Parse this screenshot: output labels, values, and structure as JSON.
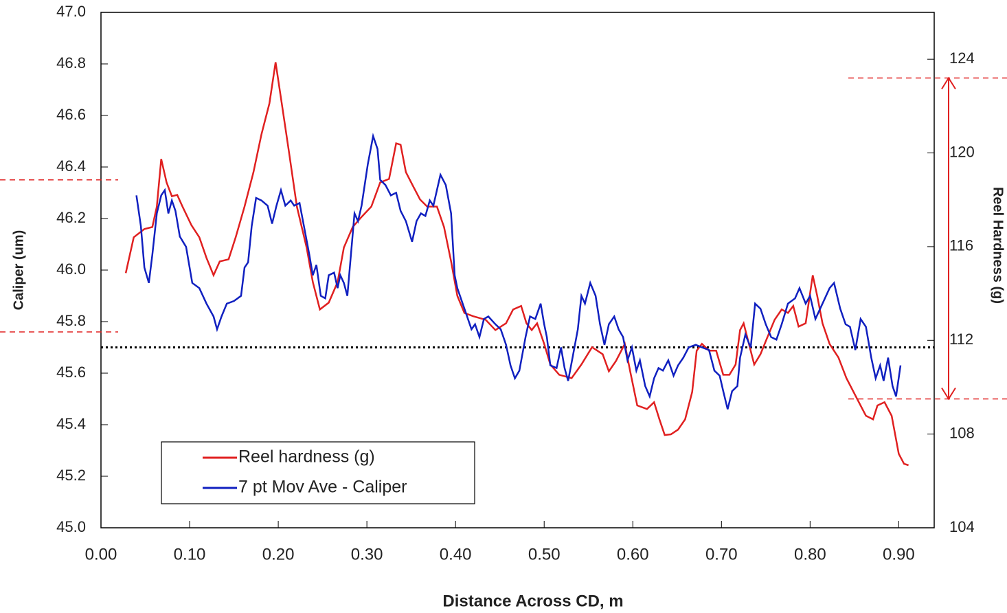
{
  "chart_data": {
    "type": "line",
    "xlabel": "Distance Across CD, m",
    "ylabel": "Caliper (um)",
    "y2label": "Reel Hardness (g)",
    "xlim": [
      0,
      0.94
    ],
    "ylim": [
      45.0,
      47.0
    ],
    "y2lim": [
      104,
      126
    ],
    "xticks": [
      {
        "value": 0,
        "label": "0.00"
      },
      {
        "value": 0.1,
        "label": "0.10"
      },
      {
        "value": 0.2,
        "label": "0.20"
      },
      {
        "value": 0.3,
        "label": "0.30"
      },
      {
        "value": 0.4,
        "label": "0.40"
      },
      {
        "value": 0.5,
        "label": "0.50"
      },
      {
        "value": 0.6,
        "label": "0.60"
      },
      {
        "value": 0.7,
        "label": "0.70"
      },
      {
        "value": 0.8,
        "label": "0.80"
      },
      {
        "value": 0.9,
        "label": "0.90"
      }
    ],
    "yticks": [
      {
        "value": 45,
        "label": "45.0"
      },
      45.2,
      45.4,
      45.6,
      45.8,
      {
        "value": 46,
        "label": "46.0"
      },
      46.2,
      46.4,
      46.6,
      46.8,
      {
        "value": 47,
        "label": "47.0"
      }
    ],
    "y2ticks": [
      104,
      108,
      112,
      116,
      120,
      124
    ],
    "grid": false,
    "legend": "lower left",
    "reference_line": 45.7,
    "reference_color": "#000000",
    "annotations": {
      "color": "#e02020",
      "left": [
        46.35,
        45.76
      ],
      "right": [
        123.2,
        109.5
      ]
    },
    "series": [
      {
        "name": "Reel hardness (g)",
        "color": "#e02020",
        "axis": "y2",
        "x": [
          0.028,
          0.037,
          0.049,
          0.058,
          0.063,
          0.068,
          0.074,
          0.08,
          0.086,
          0.092,
          0.102,
          0.111,
          0.119,
          0.127,
          0.134,
          0.144,
          0.152,
          0.162,
          0.172,
          0.181,
          0.19,
          0.197,
          0.204,
          0.212,
          0.221,
          0.232,
          0.239,
          0.247,
          0.257,
          0.267,
          0.274,
          0.284,
          0.294,
          0.305,
          0.315,
          0.325,
          0.333,
          0.338,
          0.344,
          0.352,
          0.36,
          0.368,
          0.379,
          0.387,
          0.395,
          0.402,
          0.41,
          0.42,
          0.434,
          0.445,
          0.457,
          0.465,
          0.474,
          0.48,
          0.486,
          0.492,
          0.5,
          0.507,
          0.517,
          0.531,
          0.542,
          0.554,
          0.566,
          0.573,
          0.581,
          0.591,
          0.597,
          0.605,
          0.616,
          0.624,
          0.63,
          0.636,
          0.643,
          0.651,
          0.659,
          0.667,
          0.672,
          0.678,
          0.686,
          0.694,
          0.702,
          0.709,
          0.716,
          0.721,
          0.725,
          0.73,
          0.737,
          0.744,
          0.752,
          0.76,
          0.768,
          0.775,
          0.781,
          0.787,
          0.795,
          0.803,
          0.808,
          0.814,
          0.822,
          0.832,
          0.841,
          0.853,
          0.863,
          0.871,
          0.876,
          0.884,
          0.892,
          0.9,
          0.906,
          0.911
        ],
        "values": [
          114.87,
          116.4,
          116.75,
          116.84,
          117.71,
          119.74,
          118.74,
          118.15,
          118.21,
          117.71,
          116.92,
          116.4,
          115.52,
          114.78,
          115.37,
          115.46,
          116.4,
          117.71,
          119.18,
          120.79,
          122.11,
          123.87,
          122.11,
          120.06,
          117.71,
          115.96,
          114.49,
          113.32,
          113.61,
          114.49,
          115.96,
          116.84,
          117.27,
          117.71,
          118.74,
          118.89,
          120.41,
          120.35,
          119.18,
          118.59,
          118.01,
          117.71,
          117.71,
          116.84,
          115.37,
          113.9,
          113.17,
          113.03,
          112.88,
          112.44,
          112.73,
          113.32,
          113.47,
          112.73,
          112.44,
          112.73,
          111.85,
          110.97,
          110.53,
          110.39,
          110.97,
          111.71,
          111.41,
          110.68,
          111.12,
          111.85,
          110.68,
          109.22,
          109.07,
          109.36,
          108.63,
          107.96,
          107.99,
          108.19,
          108.63,
          109.8,
          111.56,
          111.85,
          111.56,
          111.56,
          110.53,
          110.53,
          110.97,
          112.44,
          112.73,
          112.0,
          110.97,
          111.41,
          112.15,
          112.88,
          113.32,
          113.17,
          113.47,
          112.59,
          112.73,
          114.78,
          113.9,
          112.73,
          111.85,
          111.27,
          110.39,
          109.51,
          108.78,
          108.63,
          109.22,
          109.36,
          108.78,
          107.16,
          106.73,
          106.67
        ]
      },
      {
        "name": "7 pt Mov Ave - Caliper",
        "color": "#1020c0",
        "axis": "y",
        "x": [
          0.04,
          0.045,
          0.049,
          0.054,
          0.058,
          0.063,
          0.068,
          0.072,
          0.076,
          0.08,
          0.084,
          0.089,
          0.096,
          0.103,
          0.111,
          0.119,
          0.127,
          0.131,
          0.136,
          0.142,
          0.15,
          0.158,
          0.162,
          0.166,
          0.17,
          0.175,
          0.181,
          0.188,
          0.193,
          0.198,
          0.203,
          0.208,
          0.214,
          0.218,
          0.224,
          0.229,
          0.235,
          0.239,
          0.243,
          0.248,
          0.253,
          0.257,
          0.263,
          0.267,
          0.27,
          0.274,
          0.278,
          0.286,
          0.29,
          0.294,
          0.301,
          0.307,
          0.312,
          0.315,
          0.321,
          0.327,
          0.333,
          0.338,
          0.344,
          0.351,
          0.356,
          0.361,
          0.366,
          0.371,
          0.375,
          0.383,
          0.389,
          0.395,
          0.399,
          0.402,
          0.41,
          0.418,
          0.422,
          0.427,
          0.432,
          0.437,
          0.445,
          0.451,
          0.457,
          0.462,
          0.467,
          0.472,
          0.479,
          0.484,
          0.49,
          0.496,
          0.5,
          0.503,
          0.507,
          0.514,
          0.519,
          0.523,
          0.527,
          0.532,
          0.538,
          0.542,
          0.546,
          0.552,
          0.558,
          0.563,
          0.568,
          0.573,
          0.579,
          0.584,
          0.589,
          0.594,
          0.599,
          0.604,
          0.608,
          0.614,
          0.619,
          0.624,
          0.629,
          0.634,
          0.64,
          0.646,
          0.651,
          0.657,
          0.663,
          0.671,
          0.678,
          0.686,
          0.692,
          0.698,
          0.702,
          0.707,
          0.712,
          0.718,
          0.721,
          0.727,
          0.733,
          0.738,
          0.744,
          0.75,
          0.756,
          0.762,
          0.768,
          0.775,
          0.783,
          0.788,
          0.795,
          0.8,
          0.806,
          0.814,
          0.822,
          0.827,
          0.834,
          0.84,
          0.845,
          0.851,
          0.857,
          0.863,
          0.869,
          0.874,
          0.879,
          0.883,
          0.888,
          0.893,
          0.897,
          0.902
        ],
        "values": [
          46.29,
          46.17,
          46.01,
          45.95,
          46.06,
          46.22,
          46.29,
          46.31,
          46.22,
          46.27,
          46.23,
          46.13,
          46.09,
          45.95,
          45.93,
          45.87,
          45.82,
          45.77,
          45.82,
          45.87,
          45.88,
          45.9,
          46.01,
          46.03,
          46.17,
          46.28,
          46.27,
          46.25,
          46.18,
          46.25,
          46.31,
          46.25,
          46.27,
          46.25,
          46.26,
          46.17,
          46.06,
          45.98,
          46.02,
          45.9,
          45.89,
          45.98,
          45.99,
          45.93,
          45.98,
          45.95,
          45.9,
          46.22,
          46.19,
          46.25,
          46.41,
          46.52,
          46.47,
          46.35,
          46.33,
          46.29,
          46.3,
          46.23,
          46.19,
          46.11,
          46.19,
          46.22,
          46.21,
          46.27,
          46.25,
          46.37,
          46.33,
          46.22,
          45.98,
          45.93,
          45.85,
          45.77,
          45.79,
          45.74,
          45.81,
          45.82,
          45.79,
          45.77,
          45.71,
          45.63,
          45.58,
          45.61,
          45.74,
          45.82,
          45.81,
          45.87,
          45.79,
          45.74,
          45.63,
          45.62,
          45.7,
          45.62,
          45.57,
          45.66,
          45.77,
          45.9,
          45.87,
          45.95,
          45.9,
          45.79,
          45.71,
          45.79,
          45.82,
          45.77,
          45.74,
          45.65,
          45.7,
          45.61,
          45.65,
          45.55,
          45.51,
          45.58,
          45.62,
          45.61,
          45.65,
          45.59,
          45.63,
          45.66,
          45.7,
          45.71,
          45.7,
          45.69,
          45.61,
          45.59,
          45.53,
          45.46,
          45.53,
          45.55,
          45.66,
          45.75,
          45.7,
          45.87,
          45.85,
          45.79,
          45.74,
          45.73,
          45.79,
          45.87,
          45.89,
          45.93,
          45.87,
          45.9,
          45.81,
          45.87,
          45.93,
          45.95,
          45.85,
          45.79,
          45.78,
          45.69,
          45.81,
          45.78,
          45.66,
          45.58,
          45.63,
          45.57,
          45.66,
          45.55,
          45.51,
          45.63
        ]
      }
    ]
  }
}
